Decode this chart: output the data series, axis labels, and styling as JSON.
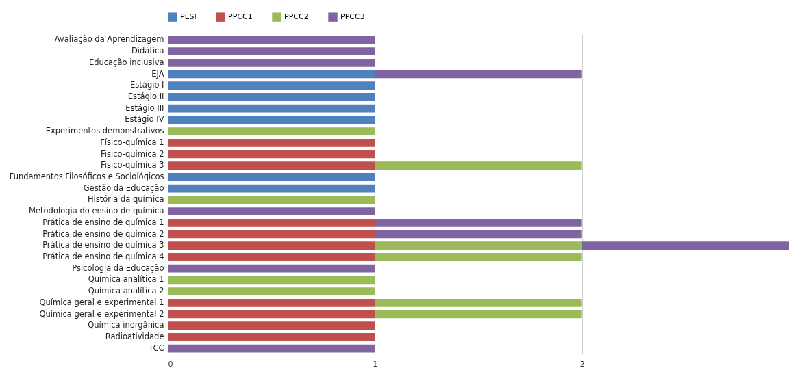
{
  "chart_data": {
    "type": "bar",
    "orientation": "horizontal",
    "stacked": true,
    "categories": [
      "Avaliação da Aprendizagem",
      "Didática",
      "Educação inclusiva",
      "EJA",
      "Estágio I",
      "Estágio II",
      "Estágio III",
      "Estágio IV",
      "Experimentos demonstrativos",
      "Físico-química 1",
      "Fisico-química 2",
      "Fisico-química 3",
      "Fundamentos Filosóficos e Sociológicos",
      "Gestão da Educação",
      "História da química",
      "Metodologia do ensino de química",
      "Prática de ensino de química 1",
      "Prática de ensino de química 2",
      "Prática de ensino de química 3",
      "Prática de ensino de química 4",
      "Psicologia da Educação",
      "Química analítica 1",
      "Química analítica 2",
      "Química geral e experimental 1",
      "Química geral e experimental 2",
      "Química inorgânica",
      "Radioatividade",
      "TCC"
    ],
    "series": [
      {
        "name": "PESI",
        "color": "#4f81bd",
        "values": [
          null,
          null,
          null,
          1,
          1,
          1,
          1,
          1,
          null,
          null,
          null,
          null,
          1,
          1,
          null,
          null,
          null,
          null,
          null,
          null,
          null,
          null,
          null,
          null,
          null,
          null,
          null,
          null
        ]
      },
      {
        "name": "PPCC1",
        "color": "#c0504d",
        "values": [
          null,
          null,
          null,
          null,
          null,
          null,
          null,
          null,
          null,
          1,
          1,
          1,
          null,
          null,
          null,
          null,
          1,
          1,
          1,
          1,
          null,
          null,
          null,
          1,
          1,
          1,
          1,
          null
        ]
      },
      {
        "name": "PPCC2",
        "color": "#9bbb59",
        "values": [
          null,
          null,
          null,
          null,
          null,
          null,
          null,
          null,
          1,
          null,
          null,
          1,
          null,
          null,
          1,
          null,
          null,
          null,
          1,
          1,
          null,
          1,
          1,
          1,
          1,
          null,
          null,
          null
        ]
      },
      {
        "name": "PPCC3",
        "color": "#8064a2",
        "values": [
          1,
          1,
          1,
          1,
          null,
          null,
          null,
          null,
          null,
          null,
          null,
          null,
          null,
          null,
          null,
          1,
          1,
          1,
          1,
          null,
          1,
          null,
          null,
          null,
          null,
          null,
          null,
          1
        ]
      }
    ],
    "xlim": [
      0,
      3
    ],
    "xticks": [
      0,
      1,
      2
    ],
    "grid": "x",
    "legend": "top"
  }
}
